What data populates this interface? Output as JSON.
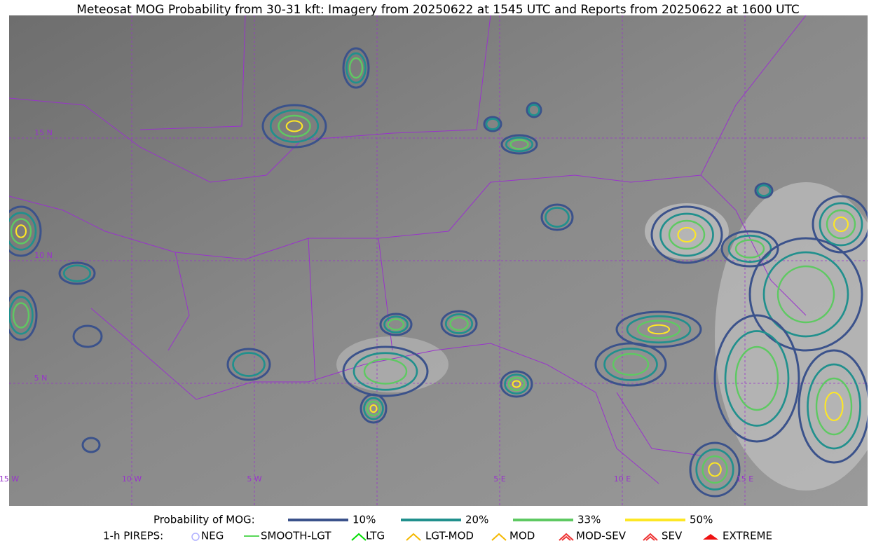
{
  "title": "Meteosat MOG Probability from 30-31 kft: Imagery from 20250622 at 1545 UTC and Reports from 20250622 at 1600 UTC",
  "grid_labels": {
    "lat": [
      "15 N",
      "10 N",
      "5 N"
    ],
    "lon": [
      "15 W",
      "10 W",
      "5 W",
      "5 E",
      "10 E",
      "15 E"
    ]
  },
  "legend": {
    "probability": {
      "label": "Probability of MOG:",
      "items": [
        {
          "label": "10%",
          "color": "#3b528b"
        },
        {
          "label": "20%",
          "color": "#21908d"
        },
        {
          "label": "33%",
          "color": "#5ec962"
        },
        {
          "label": "50%",
          "color": "#fde725"
        }
      ]
    },
    "pireps": {
      "label": "1-h PIREPS:",
      "items": [
        {
          "label": "NEG",
          "color": "#b0b0ff"
        },
        {
          "label": "SMOOTH-LGT",
          "color": "#22cc22"
        },
        {
          "label": "LTG",
          "color": "#00dd00"
        },
        {
          "label": "LGT-MOD",
          "color": "#f5b800"
        },
        {
          "label": "MOD",
          "color": "#f5b800"
        },
        {
          "label": "MOD-SEV",
          "color": "#ee3333"
        },
        {
          "label": "SEV",
          "color": "#ee3333"
        },
        {
          "label": "EXTREME",
          "color": "#ee1111"
        }
      ]
    }
  }
}
